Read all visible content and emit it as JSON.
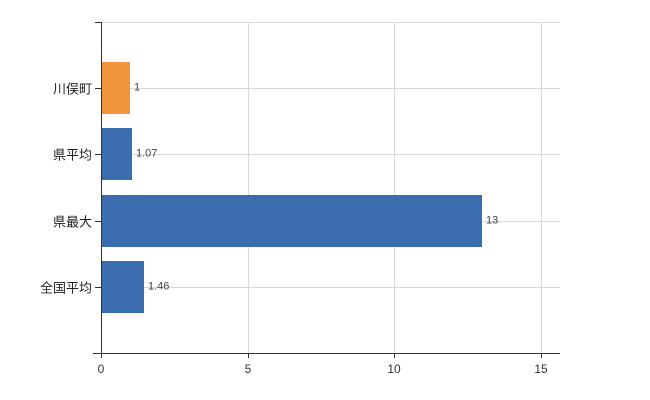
{
  "chart_data": {
    "type": "bar",
    "orientation": "horizontal",
    "title": "",
    "xlabel": "",
    "ylabel": "",
    "categories": [
      "川俣町",
      "県平均",
      "県最大",
      "全国平均"
    ],
    "values": [
      1,
      1.07,
      13,
      1.46
    ],
    "value_labels": [
      "1",
      "1.07",
      "13",
      "1.46"
    ],
    "series": [
      {
        "name": "",
        "values": [
          1,
          1.07,
          13,
          1.46
        ]
      }
    ],
    "bar_colors": [
      "#f0953c",
      "#3b6cae",
      "#3b6cae",
      "#3b6cae"
    ],
    "xlim": [
      0,
      15.65
    ],
    "xticks": [
      0,
      5,
      10,
      15
    ],
    "xtick_labels": [
      "0",
      "5",
      "10",
      "15"
    ],
    "grid": true,
    "grid_color": "#d9d9d9",
    "axis_color": "#333333",
    "text_color": "#333333",
    "background_color": "#ffffff",
    "legend_position": "none"
  }
}
